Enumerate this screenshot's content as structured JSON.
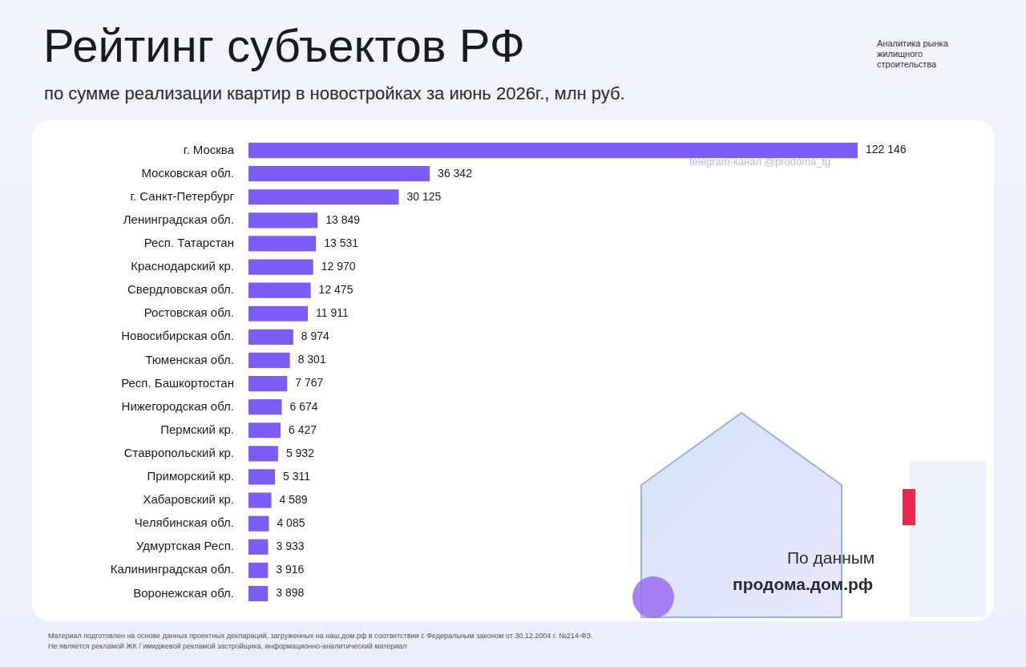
{
  "chart_data": {
    "type": "bar",
    "title": "Рейтинг субъектов РФ",
    "subtitle": "по сумме реализации квартир в новостройках за июнь 2026г., млн руб.",
    "annotations": [
      "Аналитика рынка жилищного строительства",
      "telegram-канал @prodoma_tg",
      "По данным",
      "продома.дом.рф",
      "Материал подготовлен на основе данных проектных деклараций, загруженных на наш.дом.рф в соответствии с Федеральным законом от 30.12.2004 г. №214-ФЗ.",
      "Не является рекламой ЖК / имиджевой рекламой застройщика, информационно-аналитический материал"
    ],
    "categories": [
      "г. Москва",
      "Московская обл.",
      "г. Санкт-Петербург",
      "Ленинградская обл.",
      "Респ. Татарстан",
      "Краснодарский кр.",
      "Свердловская обл.",
      "Ростовская обл.",
      "Новосибирская обл.",
      "Тюменская обл.",
      "Респ. Башкортостан",
      "Нижегородская обл.",
      "Пермский кр.",
      "Ставропольский кр.",
      "Приморский кр.",
      "Хабаровский кр.",
      "Челябинская обл.",
      "Удмуртская Респ.",
      "Калининградская обл.",
      "Воронежская обл."
    ],
    "values": [
      122146,
      36342,
      30125,
      13849,
      13531,
      12970,
      12475,
      11911,
      8974,
      8301,
      7767,
      6674,
      6427,
      5932,
      5311,
      4589,
      4085,
      3933,
      3916,
      3898
    ],
    "value_labels": [
      "122 146",
      "36 342",
      "30 125",
      "13 849",
      "13 531",
      "12 970",
      "12 475",
      "11 911",
      "8 974",
      "8 301",
      "7 767",
      "6 674",
      "6 427",
      "5 932",
      "5 311",
      "4 589",
      "4 085",
      "3 933",
      "3 916",
      "3 898"
    ],
    "color": "#7c5cf6",
    "orientation": "horizontal",
    "xlim": [
      0,
      122146
    ],
    "grid": false,
    "data_labels": true,
    "tick_labels": "y"
  }
}
